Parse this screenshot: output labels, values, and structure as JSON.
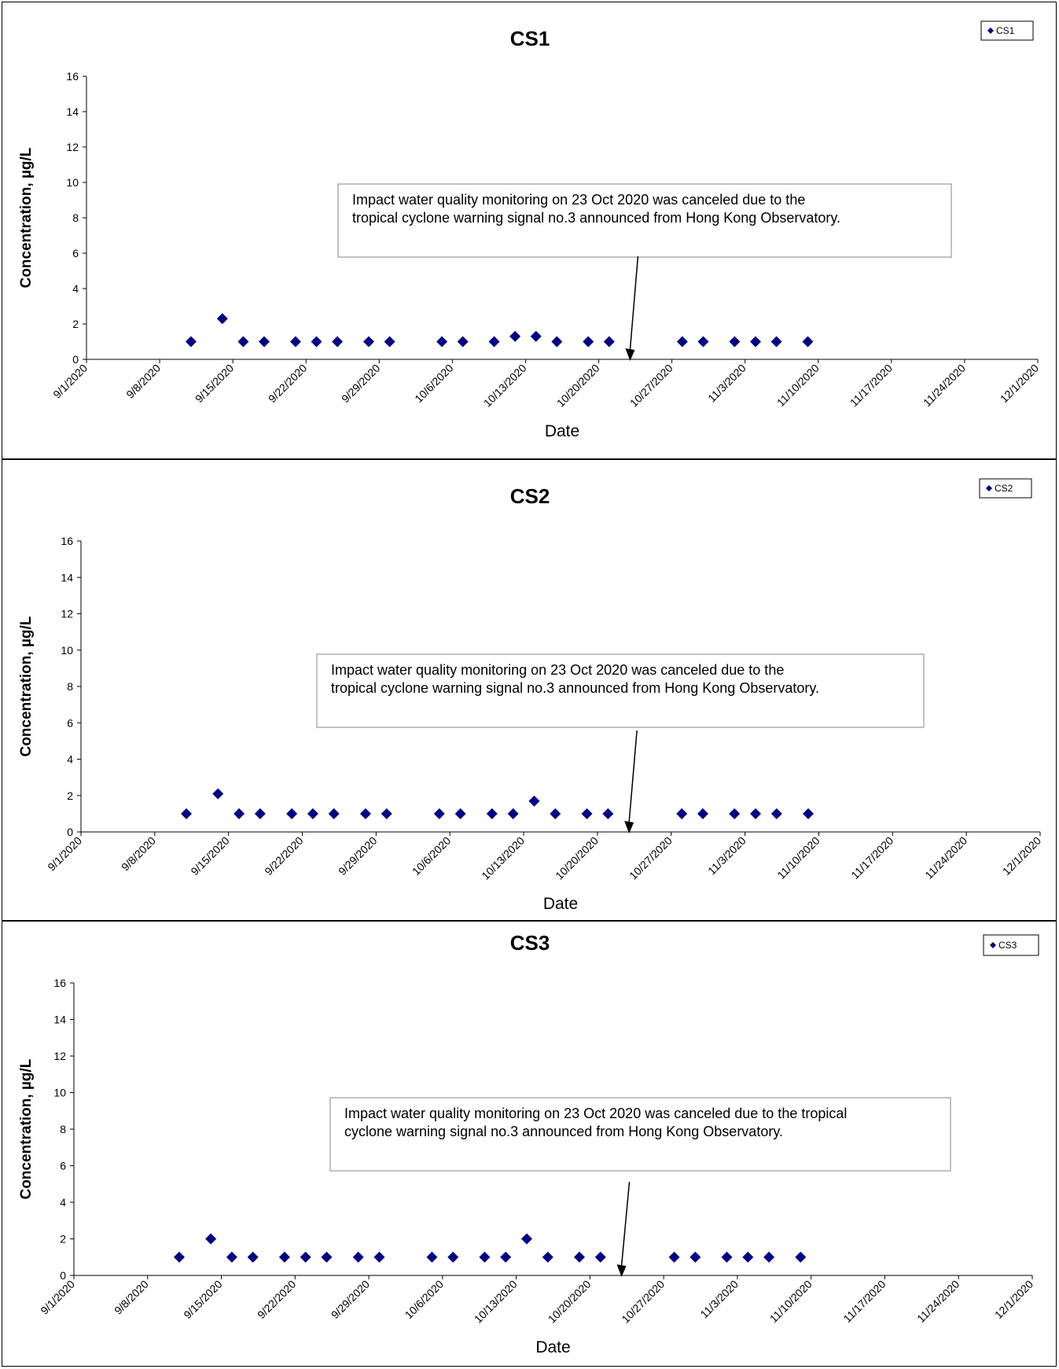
{
  "chart_data": [
    {
      "type": "scatter",
      "title": "CS1",
      "xlabel": "Date",
      "ylabel": "Concentration, µg/L",
      "ylim": [
        0,
        16
      ],
      "yticks": [
        "0",
        "2",
        "4",
        "6",
        "8",
        "10",
        "12",
        "14",
        "16"
      ],
      "xlim": [
        "2020-09-01",
        "2020-12-01"
      ],
      "xticks": [
        "9/1/2020",
        "9/8/2020",
        "9/15/2020",
        "9/22/2020",
        "9/29/2020",
        "10/6/2020",
        "10/13/2020",
        "10/20/2020",
        "10/27/2020",
        "11/3/2020",
        "11/10/2020",
        "11/17/2020",
        "11/24/2020",
        "12/1/2020"
      ],
      "legend": "top-right",
      "series": [
        {
          "name": "CS1",
          "color": "#000080",
          "marker": "diamond",
          "x": [
            "2020-09-11",
            "2020-09-14",
            "2020-09-16",
            "2020-09-18",
            "2020-09-21",
            "2020-09-23",
            "2020-09-25",
            "2020-09-28",
            "2020-09-30",
            "2020-10-05",
            "2020-10-07",
            "2020-10-10",
            "2020-10-12",
            "2020-10-14",
            "2020-10-16",
            "2020-10-19",
            "2020-10-21",
            "2020-10-28",
            "2020-10-30",
            "2020-11-02",
            "2020-11-04",
            "2020-11-06",
            "2020-11-09"
          ],
          "y": [
            1,
            2.3,
            1,
            1,
            1,
            1,
            1,
            1,
            1,
            1,
            1,
            1,
            1.3,
            1.3,
            1,
            1,
            1,
            1,
            1,
            1,
            1,
            1,
            1
          ]
        }
      ],
      "annotation": {
        "text_lines": [
          "Impact water quality monitoring on 23 Oct 2020 was canceled due to the",
          "tropical cyclone warning signal no.3 announced from Hong Kong Observatory."
        ],
        "arrow_date": "2020-10-23"
      }
    },
    {
      "type": "scatter",
      "title": "CS2",
      "xlabel": "Date",
      "ylabel": "Concentration, µg/L",
      "ylim": [
        0,
        16
      ],
      "yticks": [
        "0",
        "2",
        "4",
        "6",
        "8",
        "10",
        "12",
        "14",
        "16"
      ],
      "xlim": [
        "2020-09-01",
        "2020-12-01"
      ],
      "xticks": [
        "9/1/2020",
        "9/8/2020",
        "9/15/2020",
        "9/22/2020",
        "9/29/2020",
        "10/6/2020",
        "10/13/2020",
        "10/20/2020",
        "10/27/2020",
        "11/3/2020",
        "11/10/2020",
        "11/17/2020",
        "11/24/2020",
        "12/1/2020"
      ],
      "legend": "top-right",
      "series": [
        {
          "name": "CS2",
          "color": "#000080",
          "marker": "diamond",
          "x": [
            "2020-09-11",
            "2020-09-14",
            "2020-09-16",
            "2020-09-18",
            "2020-09-21",
            "2020-09-23",
            "2020-09-25",
            "2020-09-28",
            "2020-09-30",
            "2020-10-05",
            "2020-10-07",
            "2020-10-10",
            "2020-10-12",
            "2020-10-14",
            "2020-10-16",
            "2020-10-19",
            "2020-10-21",
            "2020-10-28",
            "2020-10-30",
            "2020-11-02",
            "2020-11-04",
            "2020-11-06",
            "2020-11-09"
          ],
          "y": [
            1,
            2.1,
            1,
            1,
            1,
            1,
            1,
            1,
            1,
            1,
            1,
            1,
            1,
            1.7,
            1,
            1,
            1,
            1,
            1,
            1,
            1,
            1,
            1
          ]
        }
      ],
      "annotation": {
        "text_lines": [
          "Impact water quality monitoring on 23 Oct 2020 was canceled due to the",
          "tropical cyclone warning signal no.3 announced from Hong Kong Observatory."
        ],
        "arrow_date": "2020-10-23"
      }
    },
    {
      "type": "scatter",
      "title": "CS3",
      "xlabel": "Date",
      "ylabel": "Concentration, µg/L",
      "ylim": [
        0,
        16
      ],
      "yticks": [
        "0",
        "2",
        "4",
        "6",
        "8",
        "10",
        "12",
        "14",
        "16"
      ],
      "xlim": [
        "2020-09-01",
        "2020-12-01"
      ],
      "xticks": [
        "9/1/2020",
        "9/8/2020",
        "9/15/2020",
        "9/22/2020",
        "9/29/2020",
        "10/6/2020",
        "10/13/2020",
        "10/20/2020",
        "10/27/2020",
        "11/3/2020",
        "11/10/2020",
        "11/17/2020",
        "11/24/2020",
        "12/1/2020"
      ],
      "legend": "top-right",
      "series": [
        {
          "name": "CS3",
          "color": "#000080",
          "marker": "diamond",
          "x": [
            "2020-09-11",
            "2020-09-14",
            "2020-09-16",
            "2020-09-18",
            "2020-09-21",
            "2020-09-23",
            "2020-09-25",
            "2020-09-28",
            "2020-09-30",
            "2020-10-05",
            "2020-10-07",
            "2020-10-10",
            "2020-10-12",
            "2020-10-14",
            "2020-10-16",
            "2020-10-19",
            "2020-10-21",
            "2020-10-28",
            "2020-10-30",
            "2020-11-02",
            "2020-11-04",
            "2020-11-06",
            "2020-11-09"
          ],
          "y": [
            1,
            2,
            1,
            1,
            1,
            1,
            1,
            1,
            1,
            1,
            1,
            1,
            1,
            2,
            1,
            1,
            1,
            1,
            1,
            1,
            1,
            1,
            1
          ]
        }
      ],
      "annotation": {
        "text_lines": [
          "Impact water quality monitoring on 23 Oct 2020 was canceled due to the tropical",
          "cyclone warning signal no.3 announced from Hong Kong Observatory."
        ],
        "arrow_date": "2020-10-23"
      }
    }
  ]
}
